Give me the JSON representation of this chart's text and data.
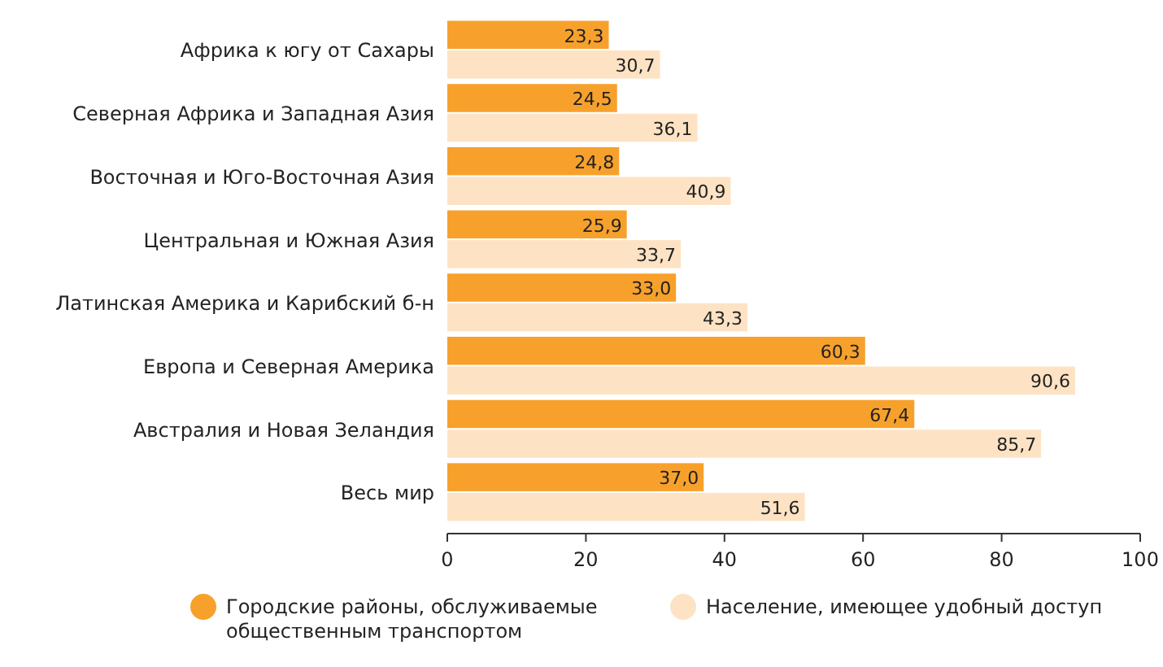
{
  "chart_data": {
    "type": "bar",
    "orientation": "horizontal",
    "categories": [
      "Африка к югу от Сахары",
      "Северная Африка и Западная Азия",
      "Восточная и Юго-Восточная Азия",
      "Центральная и Южная Азия",
      "Латинская Америка и Карибский б-н",
      "Европа и Северная Америка",
      "Австралия и Новая Зеландия",
      "Весь мир"
    ],
    "series": [
      {
        "name": "Городские районы, обслуживаемые общественным транспортом",
        "color": "#f7a12c",
        "values": [
          23.3,
          24.5,
          24.8,
          25.9,
          33.0,
          60.3,
          67.4,
          37.0
        ],
        "value_labels": [
          "23,3",
          "24,5",
          "24,8",
          "25,9",
          "33,0",
          "60,3",
          "67,4",
          "37,0"
        ]
      },
      {
        "name": "Население, имеющее удобный доступ",
        "color": "#fde3c4",
        "values": [
          30.7,
          36.1,
          40.9,
          33.7,
          43.3,
          90.6,
          85.7,
          51.6
        ],
        "value_labels": [
          "30,7",
          "36,1",
          "40,9",
          "33,7",
          "43,3",
          "90,6",
          "85,7",
          "51,6"
        ]
      }
    ],
    "xlim": [
      0,
      100
    ],
    "xticks": [
      0,
      20,
      40,
      60,
      80,
      100
    ],
    "legend": "bottom",
    "grid": false
  }
}
